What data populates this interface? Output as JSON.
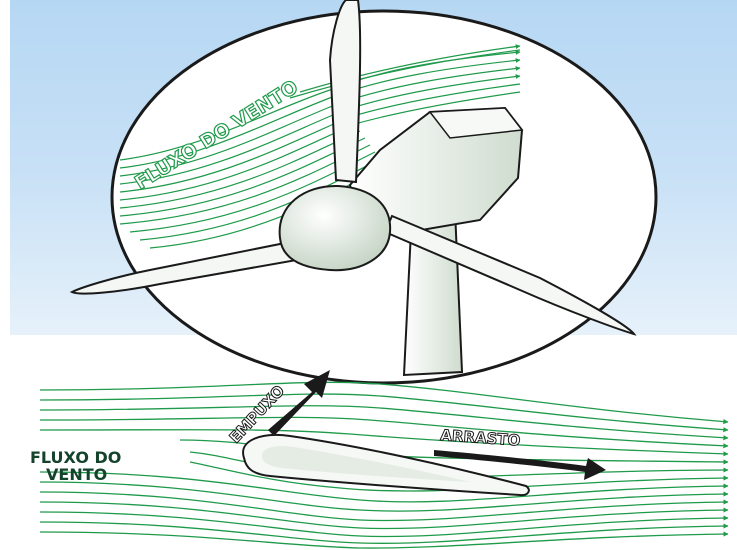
{
  "labels": {
    "wind_flow_circle": "FLUXO DO VENTO",
    "wind_flow_left_line1": "FLUXO DO",
    "wind_flow_left_line2": "VENTO",
    "lift": "EMPUXO",
    "drag": "ARRASTO"
  },
  "colors": {
    "sky_top": "#b6d7f3",
    "sky_bottom": "#e2eef9",
    "flow_green": "#1f9a4a",
    "label_dark_green": "#14432c",
    "outline": "#1a1a1a",
    "turbine_fill": "#ecf2ec"
  }
}
